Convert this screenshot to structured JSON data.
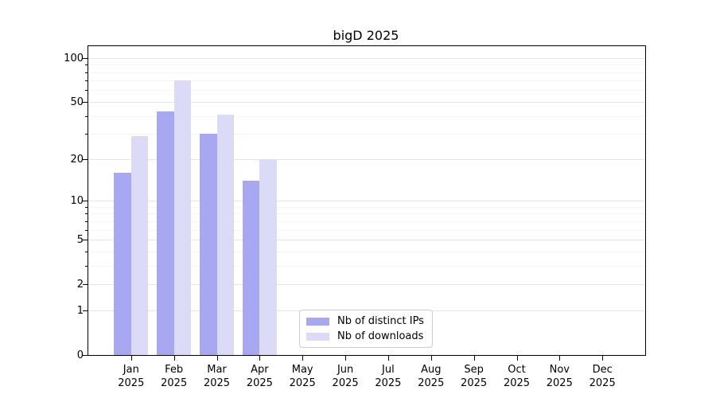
{
  "title": "bigD 2025",
  "chart_data": {
    "type": "bar",
    "title": "bigD 2025",
    "months": [
      "Jan",
      "Feb",
      "Mar",
      "Apr",
      "May",
      "Jun",
      "Jul",
      "Aug",
      "Sep",
      "Oct",
      "Nov",
      "Dec"
    ],
    "year_label": "2025",
    "series": [
      {
        "name": "Nb of distinct IPs",
        "color": "#a7a7f2",
        "values": [
          16,
          43,
          30,
          14,
          0,
          0,
          0,
          0,
          0,
          0,
          0,
          0
        ]
      },
      {
        "name": "Nb of downloads",
        "color": "#dbdbf8",
        "values": [
          29,
          70,
          41,
          20,
          0,
          0,
          0,
          0,
          0,
          0,
          0,
          0
        ]
      }
    ],
    "y_scale": "log10(1+y)",
    "ylim": [
      0,
      120
    ],
    "y_ticks": [
      0,
      1,
      2,
      5,
      10,
      20,
      50,
      100
    ],
    "y_minor_ticks": [
      3,
      4,
      6,
      7,
      8,
      9,
      30,
      40,
      60,
      70,
      80,
      90
    ],
    "grid": "horizontal",
    "legend_position": "lower-center",
    "colors": {
      "grid_major": "#e4e4e4",
      "grid_minor": "#f3f3f3",
      "spine": "#000000",
      "legend_border": "#cccccc",
      "text": "#000000",
      "background": "#ffffff"
    }
  }
}
